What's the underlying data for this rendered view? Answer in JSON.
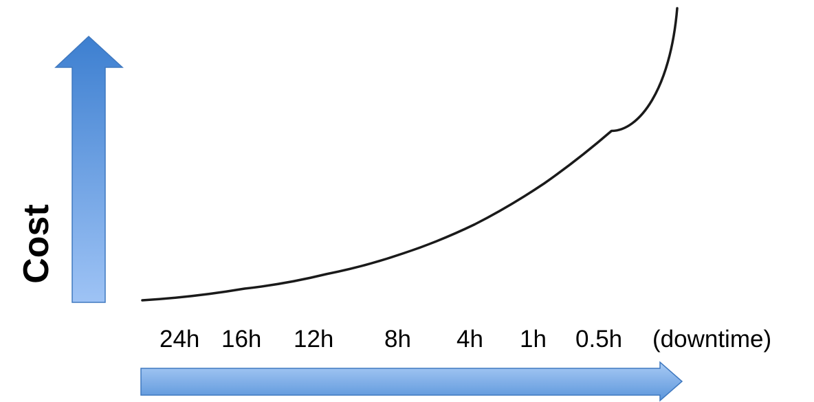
{
  "chart_data": {
    "type": "line",
    "title": "",
    "xlabel": "",
    "ylabel": "Cost",
    "x_tick_labels": [
      "24h",
      "16h",
      "12h",
      "8h",
      "4h",
      "1h",
      "0.5h",
      "(downtime)"
    ],
    "x_axis_unit_label": "(downtime)",
    "y_axis_values_shown": false,
    "grid": false,
    "legend": "none",
    "series": [
      {
        "values_relative_cost": [
          0.0,
          0.04,
          0.09,
          0.16,
          0.26,
          0.4,
          0.58,
          1.0
        ]
      }
    ]
  },
  "colors": {
    "arrow_top": "#3d7fd0",
    "arrow_bottom": "#9ec3f5",
    "arrow_stroke": "#3f78bf",
    "curve": "#1a1a1a"
  }
}
